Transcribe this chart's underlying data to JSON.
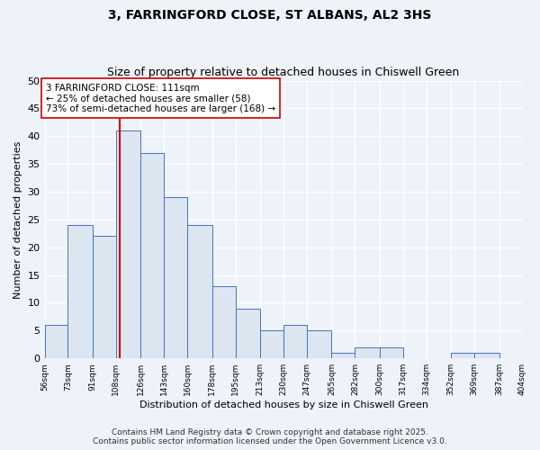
{
  "title1": "3, FARRINGFORD CLOSE, ST ALBANS, AL2 3HS",
  "title2": "Size of property relative to detached houses in Chiswell Green",
  "xlabel": "Distribution of detached houses by size in Chiswell Green",
  "ylabel": "Number of detached properties",
  "bin_edges": [
    56,
    73,
    91,
    108,
    126,
    143,
    160,
    178,
    195,
    213,
    230,
    247,
    265,
    282,
    300,
    317,
    334,
    352,
    369,
    387,
    404
  ],
  "bar_heights": [
    6,
    24,
    22,
    41,
    37,
    29,
    24,
    13,
    9,
    5,
    6,
    5,
    1,
    2,
    2,
    0,
    0,
    1,
    1,
    0
  ],
  "bar_facecolor": "#dce6f1",
  "bar_edgecolor": "#4472c4",
  "property_size": 111,
  "vline_color": "#cc0000",
  "annotation_text": "3 FARRINGFORD CLOSE: 111sqm\n← 25% of detached houses are smaller (58)\n73% of semi-detached houses are larger (168) →",
  "annotation_box_edgecolor": "#cc0000",
  "annotation_box_facecolor": "#ffffff",
  "ylim": [
    0,
    50
  ],
  "yticks": [
    0,
    5,
    10,
    15,
    20,
    25,
    30,
    35,
    40,
    45,
    50
  ],
  "footer_text": "Contains HM Land Registry data © Crown copyright and database right 2025.\nContains public sector information licensed under the Open Government Licence v3.0.",
  "background_color": "#eef2f9",
  "grid_color": "#ffffff",
  "title1_fontsize": 10,
  "title2_fontsize": 9,
  "annotation_fontsize": 7.5,
  "footer_fontsize": 6.5
}
